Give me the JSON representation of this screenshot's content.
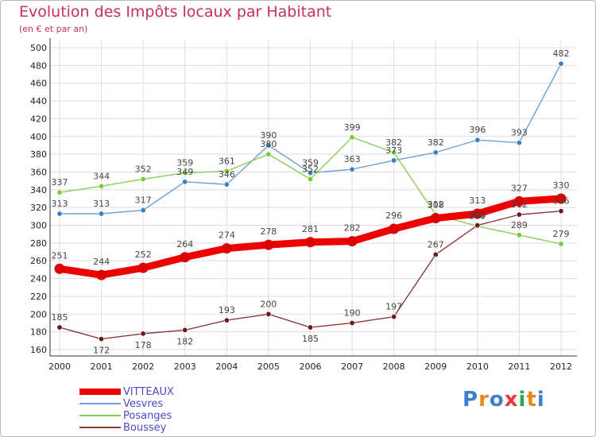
{
  "title": "Evolution des Impôts locaux par Habitant",
  "subtitle": "(en € et par an)",
  "logo_text": "Proxiti",
  "colors": {
    "title": "#c8305a",
    "axis": "#333333",
    "grid": "#dddddd",
    "legend_text": "#4a4ac8"
  },
  "chart_data": {
    "type": "line",
    "x": [
      "2000",
      "2001",
      "2002",
      "2003",
      "2004",
      "2005",
      "2006",
      "2007",
      "2008",
      "2009",
      "2010",
      "2011",
      "2012"
    ],
    "ylim": [
      160,
      500
    ],
    "yticks": [
      160,
      180,
      200,
      220,
      240,
      260,
      280,
      300,
      320,
      340,
      360,
      380,
      400,
      420,
      440,
      460,
      480,
      500
    ],
    "grid": true,
    "legend_position": "bottom-left",
    "series": [
      {
        "name": "Vesvres",
        "color": "#6fa0d0",
        "point_color": "#3a80c0",
        "values": [
          313,
          313,
          317,
          349,
          346,
          390,
          359,
          363,
          373,
          382,
          396,
          393,
          482
        ]
      },
      {
        "name": "Posanges",
        "color": "#88cc55",
        "point_color": "#77cc33",
        "values": [
          337,
          344,
          352,
          359,
          361,
          380,
          352,
          399,
          382,
          312,
          299,
          289,
          279
        ]
      },
      {
        "name": "Boussey",
        "color": "#8b3a3a",
        "point_color": "#6a1a1a",
        "values": [
          185,
          172,
          178,
          182,
          193,
          200,
          185,
          190,
          197,
          267,
          300,
          312,
          316
        ]
      },
      {
        "name": "VITTEAUX",
        "color": "#ee0000",
        "point_color": "#dd0000",
        "values": [
          251,
          244,
          252,
          264,
          274,
          278,
          281,
          282,
          296,
          308,
          313,
          327,
          330
        ]
      }
    ]
  }
}
